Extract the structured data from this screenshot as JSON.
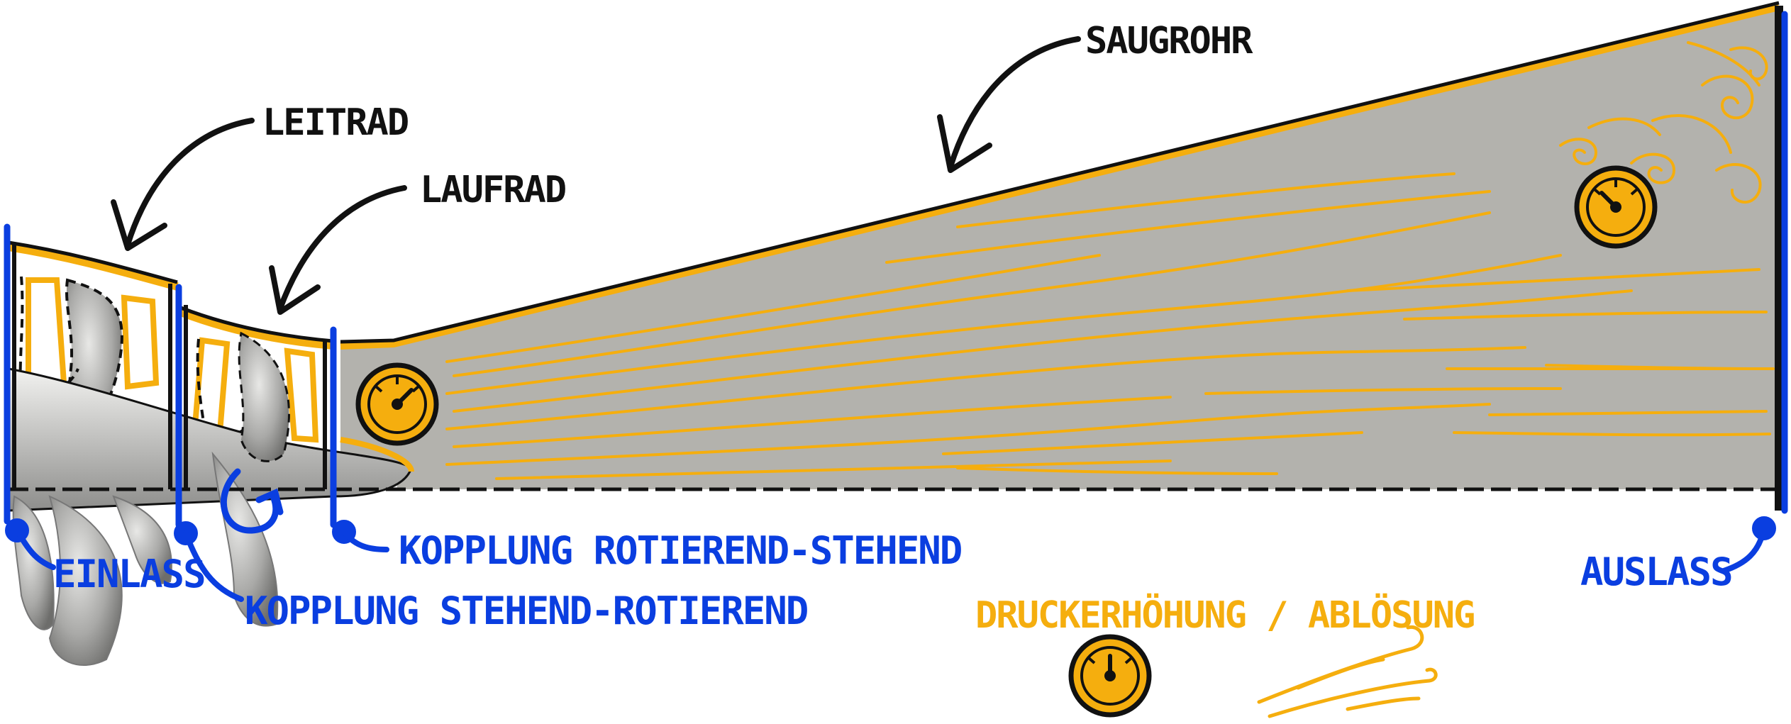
{
  "labels": {
    "leitrad": "LEITRAD",
    "laufrad": "LAUFRAD",
    "saugrohr": "SAUGROHR",
    "einlass": "EINLASS",
    "auslass": "AUSLASS",
    "kopplung_rs": "KOPPLUNG ROTIEREND-STEHEND",
    "kopplung_sr": "KOPPLUNG STEHEND-ROTIEREND",
    "legend_pressure": "DRUCKERHÖHUNG / ABLÖSUNG"
  },
  "icons": {
    "pressure_gauge": "pressure-gauge-icon",
    "rotation": "rotation-arrow-icon",
    "separation": "vortex-icon"
  },
  "colors": {
    "blue": "#0a3ee0",
    "orange": "#f5ae0e",
    "fluid": "#b3b2ad",
    "outline": "#111111"
  }
}
